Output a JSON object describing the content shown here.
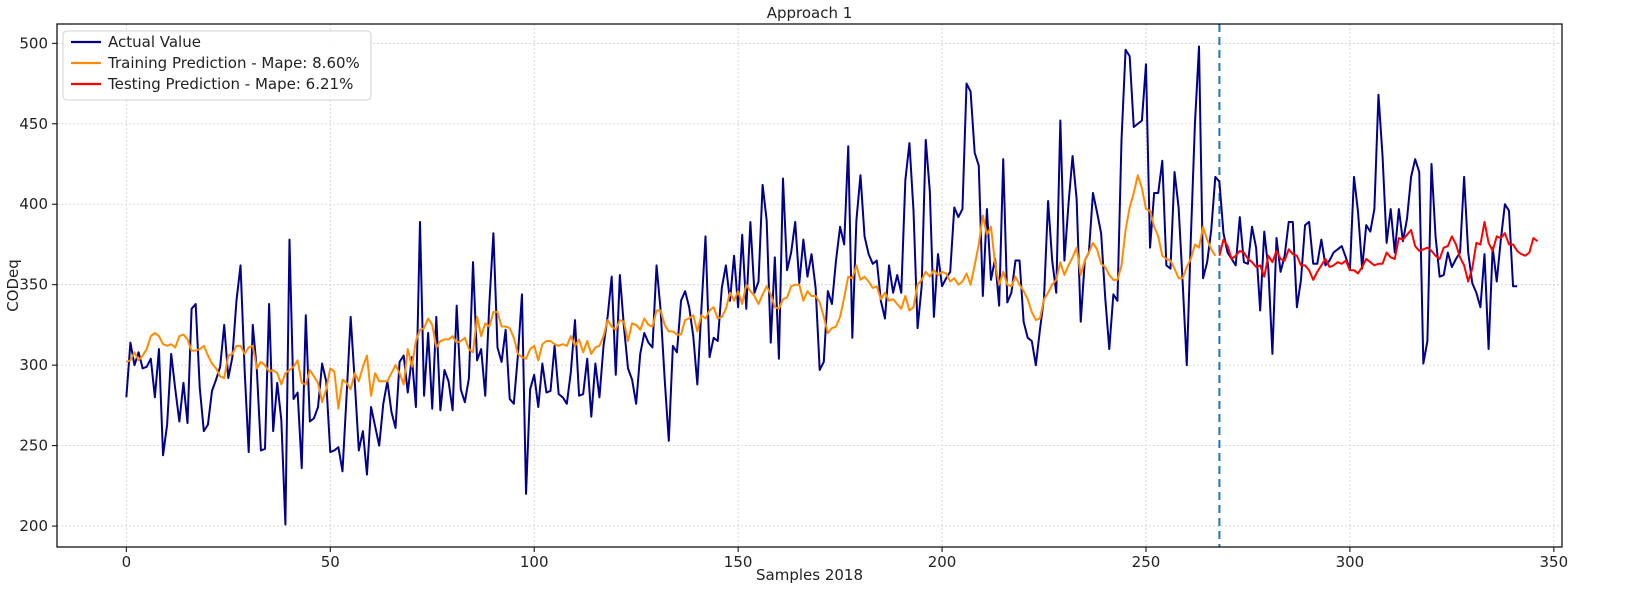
{
  "chart_data": {
    "type": "line",
    "title": "Approach 1",
    "xlabel": "Samples 2018",
    "ylabel": "CODeq",
    "xlim": [
      -17,
      352
    ],
    "ylim": [
      187,
      512
    ],
    "xticks": [
      0,
      50,
      100,
      150,
      200,
      250,
      300,
      350
    ],
    "yticks": [
      200,
      250,
      300,
      350,
      400,
      450,
      500
    ],
    "grid": true,
    "legend_position": "top-left",
    "split_line": {
      "x": 268,
      "color": "#1f77b4",
      "style": "dashed"
    },
    "series": [
      {
        "name": "Actual Value",
        "color": "#00008b",
        "x_start": 0,
        "values": [
          280,
          314,
          300,
          308,
          298,
          299,
          304,
          280,
          310,
          244,
          263,
          307,
          285,
          265,
          289,
          264,
          335,
          338,
          286,
          259,
          263,
          284,
          291,
          299,
          325,
          292,
          305,
          340,
          362,
          297,
          246,
          325,
          297,
          247,
          248,
          338,
          259,
          289,
          266,
          201,
          378,
          279,
          283,
          236,
          331,
          265,
          267,
          274,
          301,
          290,
          246,
          247,
          249,
          234,
          281,
          330,
          290,
          247,
          259,
          232,
          274,
          262,
          250,
          276,
          290,
          271,
          261,
          302,
          306,
          283,
          305,
          274,
          389,
          281,
          320,
          273,
          330,
          272,
          297,
          290,
          272,
          337,
          285,
          277,
          292,
          364,
          303,
          310,
          281,
          338,
          382,
          311,
          302,
          322,
          279,
          276,
          306,
          344,
          220,
          285,
          294,
          274,
          301,
          283,
          284,
          312,
          282,
          280,
          276,
          296,
          328,
          281,
          282,
          304,
          268,
          301,
          280,
          312,
          330,
          355,
          294,
          356,
          324,
          298,
          291,
          276,
          307,
          320,
          314,
          311,
          362,
          334,
          291,
          253,
          312,
          308,
          340,
          346,
          336,
          318,
          288,
          335,
          380,
          305,
          317,
          315,
          348,
          362,
          340,
          368,
          336,
          381,
          335,
          389,
          345,
          352,
          412,
          390,
          314,
          367,
          304,
          416,
          359,
          370,
          389,
          351,
          378,
          355,
          369,
          348,
          297,
          302,
          346,
          338,
          365,
          386,
          375,
          436,
          317,
          390,
          418,
          380,
          369,
          363,
          365,
          340,
          329,
          362,
          345,
          356,
          345,
          415,
          438,
          396,
          323,
          349,
          440,
          408,
          330,
          369,
          349,
          354,
          358,
          398,
          392,
          397,
          475,
          470,
          432,
          424,
          343,
          397,
          353,
          366,
          337,
          428,
          339,
          345,
          365,
          365,
          327,
          317,
          315,
          300,
          322,
          342,
          402,
          365,
          345,
          452,
          365,
          400,
          430,
          403,
          327,
          365,
          370,
          407,
          395,
          382,
          342,
          310,
          344,
          340,
          440,
          496,
          492,
          448,
          450,
          452,
          487,
          373,
          407,
          407,
          427,
          362,
          360,
          420,
          398,
          351,
          300,
          379,
          450,
          498,
          354,
          364,
          384,
          417,
          414,
          382,
          370,
          366,
          362,
          392,
          364,
          363,
          386,
          373,
          334,
          383,
          360,
          307,
          379,
          358,
          368,
          389,
          389,
          336,
          353,
          387,
          389,
          363,
          363,
          378,
          362,
          365,
          370,
          372,
          374,
          367,
          359,
          417,
          395,
          360,
          387,
          383,
          397,
          468,
          430,
          376,
          397,
          370,
          397,
          377,
          391,
          417,
          428,
          420,
          301,
          315,
          425,
          380,
          355,
          356,
          370,
          361,
          366,
          370,
          417,
          370,
          351,
          345,
          336,
          369,
          310,
          373,
          352,
          378,
          400,
          396,
          349,
          349
        ]
      },
      {
        "name": "Training Prediction - Mape: 8.60%",
        "color": "#ff8c00",
        "x_start": 0,
        "values": [
          302,
          303,
          308,
          303,
          306,
          310,
          318,
          320,
          318,
          313,
          312,
          313,
          311,
          318,
          319,
          316,
          309,
          309,
          310,
          312,
          306,
          301,
          298,
          293,
          292,
          306,
          307,
          312,
          312,
          307,
          311,
          312,
          298,
          302,
          300,
          296,
          297,
          295,
          288,
          295,
          297,
          299,
          303,
          289,
          288,
          297,
          293,
          289,
          277,
          285,
          298,
          296,
          273,
          291,
          289,
          285,
          295,
          290,
          299,
          306,
          281,
          295,
          290,
          290,
          290,
          295,
          300,
          295,
          288,
          310,
          299,
          315,
          322,
          323,
          329,
          325,
          311,
          315,
          316,
          316,
          318,
          314,
          315,
          317,
          310,
          308,
          330,
          318,
          326,
          324,
          333,
          333,
          324,
          324,
          323,
          317,
          307,
          305,
          304,
          310,
          312,
          303,
          313,
          315,
          315,
          313,
          312,
          313,
          312,
          318,
          312,
          316,
          308,
          315,
          307,
          311,
          312,
          318,
          328,
          324,
          322,
          328,
          327,
          315,
          326,
          325,
          322,
          329,
          325,
          324,
          334,
          334,
          325,
          321,
          321,
          319,
          319,
          328,
          329,
          331,
          321,
          331,
          329,
          334,
          336,
          329,
          330,
          335,
          345,
          340,
          346,
          338,
          350,
          346,
          343,
          338,
          344,
          349,
          344,
          336,
          335,
          341,
          342,
          349,
          350,
          350,
          340,
          346,
          343,
          343,
          339,
          330,
          320,
          323,
          324,
          330,
          342,
          355,
          354,
          362,
          353,
          355,
          352,
          348,
          349,
          341,
          345,
          340,
          341,
          338,
          335,
          343,
          334,
          336,
          350,
          353,
          358,
          355,
          359,
          356,
          358,
          357,
          352,
          354,
          350,
          352,
          357,
          350,
          362,
          375,
          393,
          381,
          386,
          363,
          350,
          358,
          350,
          349,
          355,
          350,
          346,
          341,
          333,
          328,
          329,
          341,
          345,
          350,
          353,
          364,
          356,
          362,
          367,
          373,
          356,
          365,
          370,
          376,
          372,
          363,
          361,
          356,
          353,
          353,
          362,
          384,
          398,
          407,
          418,
          410,
          397,
          396,
          386,
          380,
          368,
          366,
          365,
          360,
          354,
          354,
          361,
          366,
          375,
          373,
          386,
          378,
          372,
          368
        ]
      },
      {
        "name": "Testing Prediction - Mape: 6.21%",
        "color": "#ff0000",
        "x_start": 268,
        "values": [
          368,
          378,
          374,
          366,
          368,
          371,
          370,
          366,
          364,
          361,
          362,
          355,
          368,
          364,
          371,
          366,
          365,
          372,
          369,
          368,
          362,
          362,
          359,
          353,
          358,
          362,
          366,
          361,
          362,
          364,
          363,
          365,
          359,
          359,
          357,
          361,
          366,
          364,
          362,
          363,
          363,
          370,
          367,
          366,
          379,
          378,
          381,
          384,
          374,
          371,
          372,
          373,
          371,
          368,
          366,
          373,
          374,
          380,
          375,
          367,
          362,
          352,
          360,
          376,
          375,
          389,
          376,
          371,
          380,
          379,
          382,
          375,
          375,
          371,
          369,
          368,
          370,
          379,
          377
        ]
      }
    ]
  }
}
